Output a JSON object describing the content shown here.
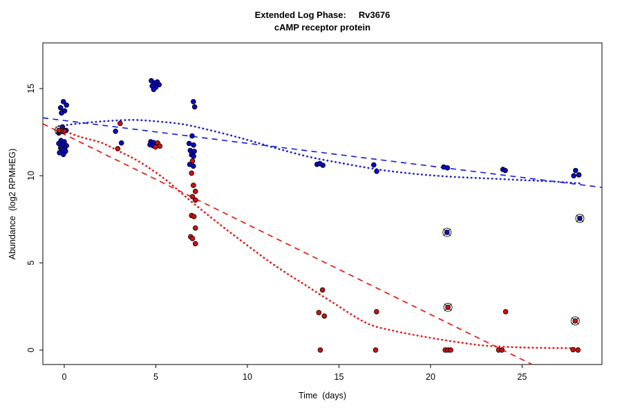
{
  "figure": {
    "title_line1": "Extended Log Phase:     Rv3676",
    "title_line2": "cAMP receptor protein",
    "xlabel": "Time  (days)",
    "ylabel": "Abundance  (log2 RPMHEG)"
  },
  "chart_data": {
    "type": "scatter",
    "title": "Extended Log Phase: Rv3676 / cAMP receptor protein",
    "xlabel": "Time (days)",
    "ylabel": "Abundance (log2 RPMHEG)",
    "xlim": [
      -1.17,
      29.36
    ],
    "ylim": [
      -0.83,
      17.62
    ],
    "x_ticks": [
      0,
      5,
      10,
      15,
      20,
      25
    ],
    "y_ticks": [
      0,
      5,
      10,
      15
    ],
    "grid": false,
    "legend": "none",
    "colors": {
      "blue_point": "#0a0ac0",
      "red_point": "#cc1111",
      "blue_line": "#2020e0",
      "red_line": "#ee1515",
      "axis": "#000000",
      "flag_ring": "#222222"
    },
    "series": [
      {
        "name": "blue-series",
        "color_key": "blue_point",
        "points": [
          [
            -0.05,
            14.25
          ],
          [
            0.12,
            14.05
          ],
          [
            -0.2,
            13.9
          ],
          [
            0.02,
            13.72
          ],
          [
            -0.15,
            13.6
          ],
          [
            -0.1,
            12.8
          ],
          [
            0.1,
            12.6
          ],
          [
            -0.3,
            12.45
          ],
          [
            -0.18,
            12.02
          ],
          [
            0.0,
            11.95
          ],
          [
            -0.3,
            11.85
          ],
          [
            -0.08,
            11.78
          ],
          [
            0.12,
            11.72
          ],
          [
            -0.2,
            11.6
          ],
          [
            0.02,
            11.55
          ],
          [
            -0.14,
            11.45
          ],
          [
            0.07,
            11.4
          ],
          [
            -0.26,
            11.32
          ],
          [
            -0.05,
            11.22
          ],
          [
            2.8,
            12.55
          ],
          [
            3.12,
            11.88
          ],
          [
            4.75,
            15.45
          ],
          [
            4.92,
            15.32
          ],
          [
            5.08,
            15.38
          ],
          [
            4.8,
            15.15
          ],
          [
            5.0,
            15.08
          ],
          [
            5.18,
            15.22
          ],
          [
            4.88,
            14.95
          ],
          [
            4.72,
            11.95
          ],
          [
            4.88,
            11.9
          ],
          [
            4.68,
            11.78
          ],
          [
            4.85,
            11.72
          ],
          [
            7.05,
            14.25
          ],
          [
            7.12,
            13.95
          ],
          [
            6.98,
            12.28
          ],
          [
            6.82,
            11.85
          ],
          [
            7.06,
            11.76
          ],
          [
            6.88,
            11.45
          ],
          [
            7.1,
            11.4
          ],
          [
            6.95,
            11.2
          ],
          [
            7.06,
            11.12
          ],
          [
            6.85,
            10.65
          ],
          [
            7.05,
            10.55
          ],
          [
            13.8,
            10.65
          ],
          [
            13.95,
            10.7
          ],
          [
            14.12,
            10.6
          ],
          [
            16.9,
            10.62
          ],
          [
            17.06,
            10.25
          ],
          [
            20.72,
            10.5
          ],
          [
            20.92,
            10.45
          ],
          [
            23.95,
            10.36
          ],
          [
            24.08,
            10.3
          ],
          [
            27.82,
            10.0
          ],
          [
            27.92,
            10.3
          ],
          [
            28.1,
            10.05
          ]
        ]
      },
      {
        "name": "red-series",
        "color_key": "red_point",
        "points": [
          [
            0.0,
            12.55
          ],
          [
            3.05,
            13.0
          ],
          [
            2.92,
            11.55
          ],
          [
            5.1,
            11.88
          ],
          [
            5.22,
            11.7
          ],
          [
            4.98,
            11.65
          ],
          [
            7.0,
            10.85
          ],
          [
            6.95,
            10.15
          ],
          [
            7.05,
            9.45
          ],
          [
            7.16,
            9.1
          ],
          [
            7.0,
            8.8
          ],
          [
            7.16,
            8.6
          ],
          [
            6.95,
            7.72
          ],
          [
            7.08,
            7.66
          ],
          [
            7.16,
            7.0
          ],
          [
            6.9,
            6.5
          ],
          [
            7.0,
            6.4
          ],
          [
            7.16,
            6.1
          ],
          [
            14.1,
            3.45
          ],
          [
            13.9,
            2.15
          ],
          [
            14.2,
            1.95
          ],
          [
            13.98,
            0.0
          ],
          [
            17.05,
            2.2
          ],
          [
            17.0,
            0.0
          ],
          [
            20.8,
            0.0
          ],
          [
            20.95,
            0.0
          ],
          [
            21.1,
            0.0
          ],
          [
            24.1,
            2.2
          ],
          [
            23.72,
            0.0
          ],
          [
            23.9,
            0.0
          ],
          [
            27.78,
            0.02
          ],
          [
            28.05,
            0.0
          ]
        ]
      },
      {
        "name": "blue-flagged-series",
        "color_key": "blue_point",
        "flagged": true,
        "points": [
          [
            20.9,
            6.75
          ],
          [
            28.15,
            7.55
          ]
        ]
      },
      {
        "name": "red-flagged-series",
        "color_key": "red_point",
        "flagged": true,
        "points": [
          [
            -0.28,
            12.6
          ],
          [
            20.95,
            2.45
          ],
          [
            27.9,
            1.67
          ]
        ]
      }
    ],
    "trend_lines": [
      {
        "name": "blue-dashed-linear-fit",
        "color_key": "blue_line",
        "style": "dashed",
        "points": [
          [
            -1.17,
            13.32
          ],
          [
            29.36,
            9.33
          ]
        ]
      },
      {
        "name": "red-dashed-linear-fit",
        "color_key": "red_line",
        "style": "dashed",
        "points": [
          [
            -1.17,
            12.98
          ],
          [
            25.55,
            -0.83
          ]
        ]
      },
      {
        "name": "blue-dotted-smooth-fit",
        "color_key": "blue_line",
        "style": "dotted",
        "points": [
          [
            -0.3,
            12.85
          ],
          [
            1.0,
            13.02
          ],
          [
            2.5,
            13.15
          ],
          [
            3.8,
            13.2
          ],
          [
            5.0,
            13.12
          ],
          [
            6.5,
            12.95
          ],
          [
            8.0,
            12.6
          ],
          [
            9.5,
            12.2
          ],
          [
            10.6,
            11.87
          ],
          [
            12.0,
            11.45
          ],
          [
            13.5,
            11.05
          ],
          [
            15.0,
            10.75
          ],
          [
            17.0,
            10.38
          ],
          [
            19.0,
            10.12
          ],
          [
            21.0,
            9.95
          ],
          [
            23.0,
            9.85
          ],
          [
            25.0,
            9.75
          ],
          [
            26.5,
            9.68
          ],
          [
            28.2,
            9.56
          ]
        ]
      },
      {
        "name": "red-dotted-smooth-fit",
        "color_key": "red_line",
        "style": "dotted",
        "points": [
          [
            -0.3,
            12.7
          ],
          [
            0.8,
            12.25
          ],
          [
            2.0,
            11.9
          ],
          [
            3.0,
            11.4
          ],
          [
            4.1,
            10.8
          ],
          [
            5.5,
            9.8
          ],
          [
            6.9,
            8.55
          ],
          [
            8.5,
            7.2
          ],
          [
            10.0,
            6.0
          ],
          [
            11.5,
            4.85
          ],
          [
            13.5,
            3.5
          ],
          [
            14.7,
            2.7
          ],
          [
            16.5,
            1.55
          ],
          [
            18.0,
            1.1
          ],
          [
            20.0,
            0.7
          ],
          [
            21.5,
            0.45
          ],
          [
            23.0,
            0.25
          ],
          [
            25.0,
            0.15
          ],
          [
            26.5,
            0.12
          ],
          [
            28.2,
            0.1
          ]
        ]
      }
    ]
  }
}
